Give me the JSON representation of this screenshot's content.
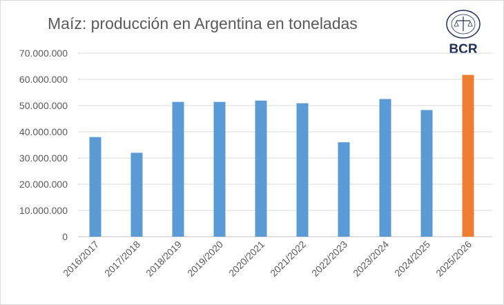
{
  "chart_data": {
    "type": "bar",
    "title": "Maíz: producción en Argentina en toneladas",
    "categories": [
      "2016/2017",
      "2017/2018",
      "2018/2019",
      "2019/2020",
      "2020/2021",
      "2021/2022",
      "2022/2023",
      "2023/2024",
      "2024/2025",
      "2025/2026"
    ],
    "values": [
      38000000,
      32000000,
      51400000,
      51400000,
      51900000,
      50900000,
      36000000,
      52500000,
      48300000,
      61700000
    ],
    "highlight_index": 9,
    "colors": {
      "bar": "#5b9bd5",
      "highlight": "#ed7d31",
      "grid": "#d9d9d9",
      "text": "#595959"
    },
    "ylim": [
      0,
      70000000
    ],
    "yticks": [
      "0",
      "10.000.000",
      "20.000.000",
      "30.000.000",
      "40.000.000",
      "50.000.000",
      "60.000.000",
      "70.000.000"
    ],
    "xlabel": "",
    "ylabel": "",
    "grid": true,
    "legend": "none"
  },
  "logo": {
    "text": "BCR"
  }
}
